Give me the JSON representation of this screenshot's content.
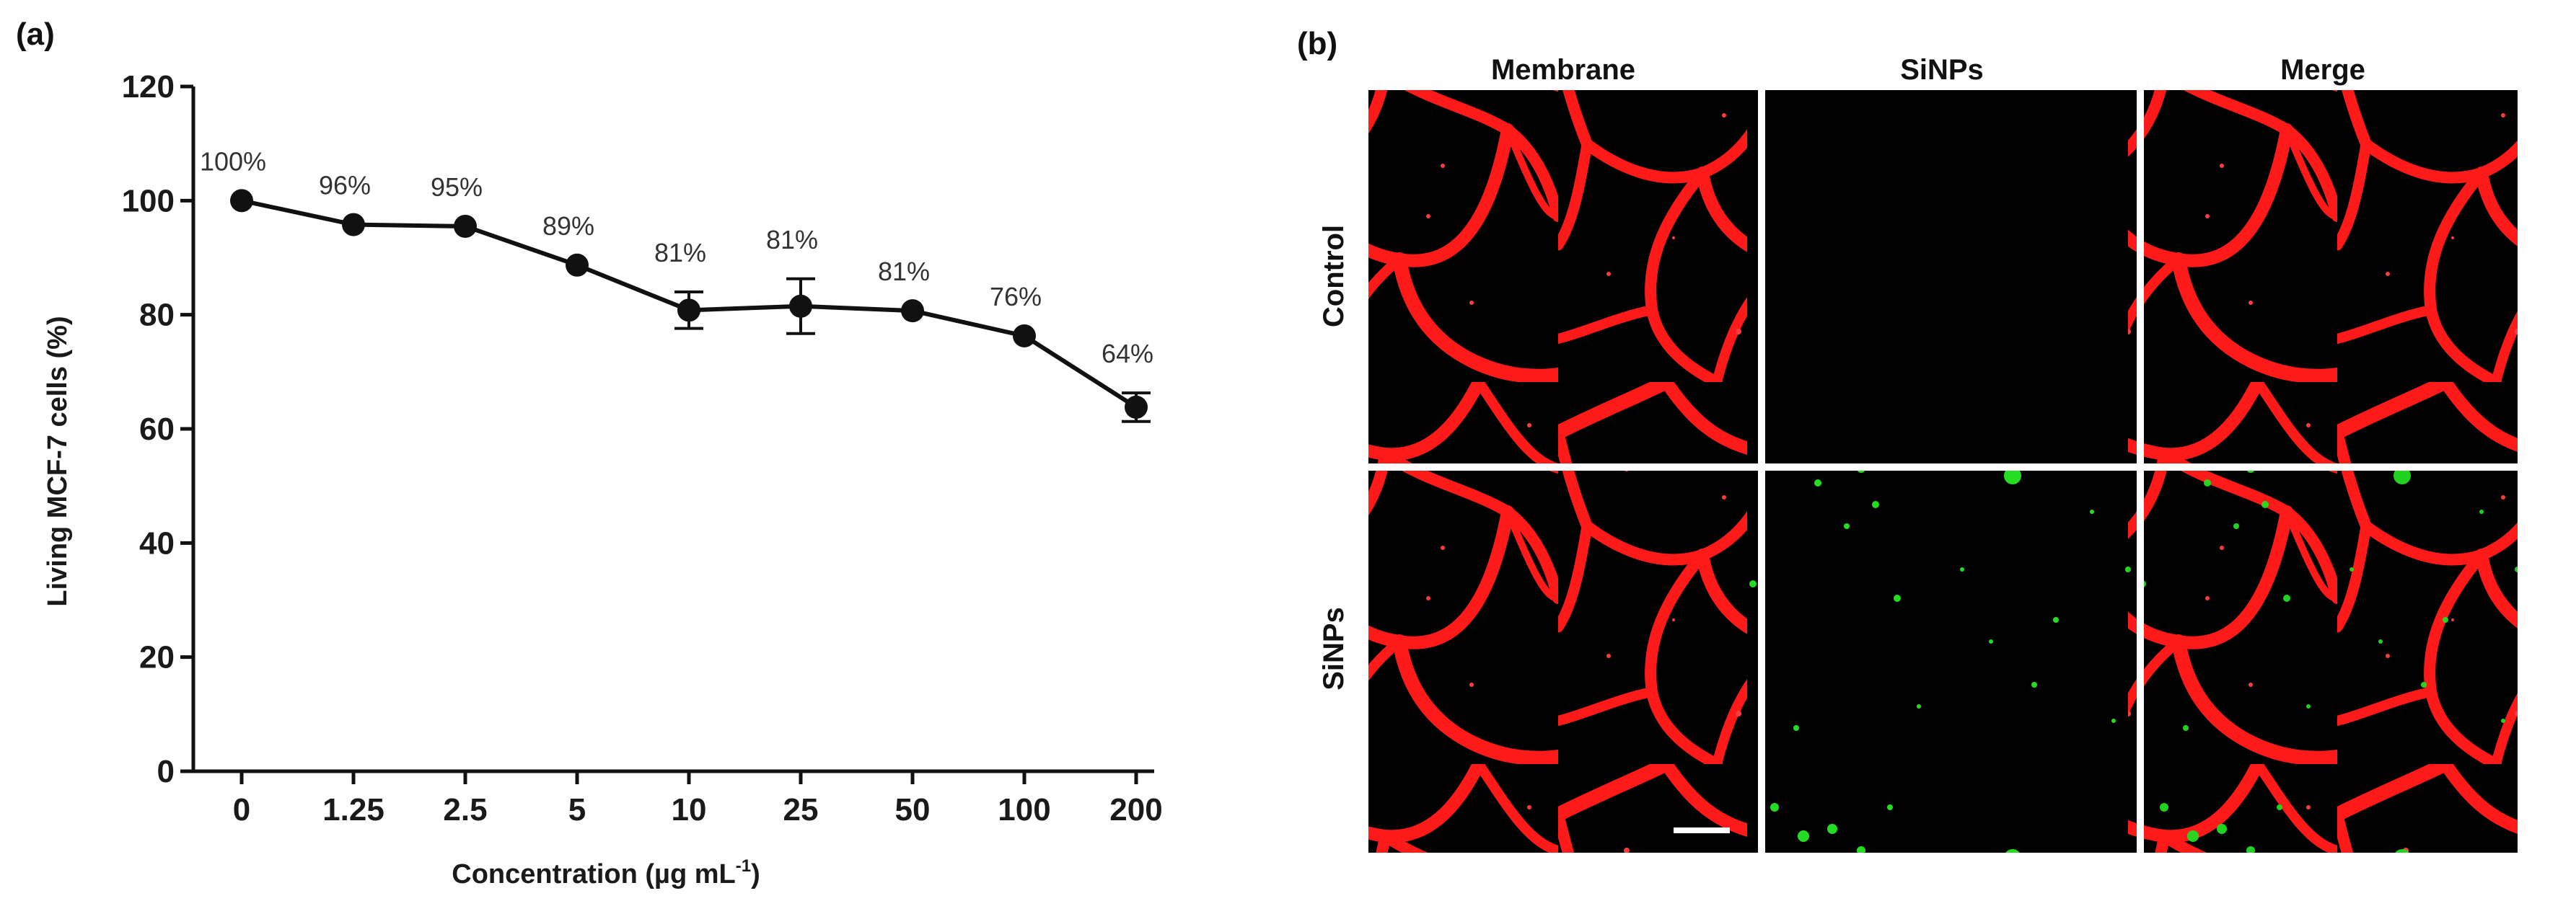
{
  "figure": {
    "panel_a_label": "(a)",
    "panel_b_label": "(b)",
    "colors": {
      "line": "#111111",
      "membrane": "#ff1a1a",
      "sinps": "#22dd22",
      "background": "#000000"
    }
  },
  "chart_data": {
    "type": "line",
    "categories": [
      "0",
      "1.25",
      "2.5",
      "5",
      "10",
      "25",
      "50",
      "100",
      "200"
    ],
    "values": [
      100,
      95.8,
      95.5,
      88.7,
      80.8,
      81.5,
      80.7,
      76.3,
      63.8
    ],
    "errors": [
      0.5,
      0.8,
      0.8,
      0.8,
      3.2,
      4.8,
      0.8,
      0.8,
      2.5
    ],
    "data_labels": [
      "100%",
      "96%",
      "95%",
      "89%",
      "81%",
      "81%",
      "81%",
      "76%",
      "64%"
    ],
    "title": "",
    "xlabel": "Concentration (µg mL",
    "xlabel_sup": "-1",
    "xlabel_end": ")",
    "ylabel": "Living MCF-7 cells (%)",
    "ylim": [
      0,
      120
    ],
    "yticks": [
      0,
      20,
      40,
      60,
      80,
      100,
      120
    ],
    "grid": false,
    "legend": "none"
  },
  "micrographs": {
    "columns": [
      "Membrane",
      "SiNPs",
      "Merge"
    ],
    "rows": [
      "Control",
      "SiNPs"
    ]
  }
}
